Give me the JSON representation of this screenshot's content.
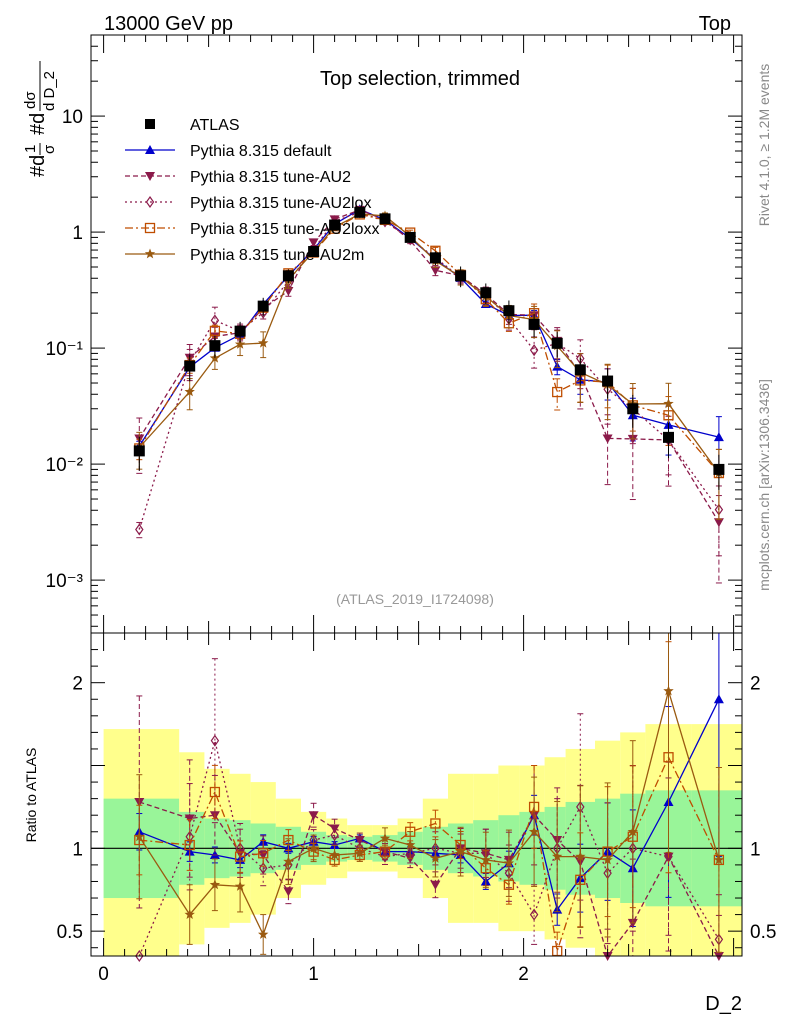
{
  "header": {
    "left": "13000 GeV pp",
    "right": "Top"
  },
  "side_labels": {
    "rivet": "Rivet 4.1.0, ≥ 1.2M events",
    "mcplots": "mcplots.cern.ch [arXiv:1306.3436]"
  },
  "chart_data": {
    "type": "line",
    "title": "Top selection, trimmed",
    "analysis_tag": "(ATLAS_2019_I1724098)",
    "xlabel": "D_2",
    "ylabel": "1/σ dσ/dD_2",
    "ratio_ylabel": "Ratio to ATLAS",
    "xlim": [
      -0.06,
      3.04
    ],
    "ylim": [
      0.00035,
      50
    ],
    "ylog": true,
    "ratio_ylim": [
      0.35,
      2.3
    ],
    "x_ticks": [
      "0",
      "1",
      "2"
    ],
    "y_ticks": [
      "10⁻³",
      "10⁻²",
      "10⁻¹",
      "1",
      "10"
    ],
    "ratio_ticks": [
      "0.5",
      "1",
      "2"
    ],
    "x": [
      0.17,
      0.41,
      0.53,
      0.65,
      0.76,
      0.88,
      1.0,
      1.1,
      1.22,
      1.34,
      1.46,
      1.58,
      1.7,
      1.82,
      1.93,
      2.05,
      2.16,
      2.27,
      2.4,
      2.52,
      2.69,
      2.93
    ],
    "x_edges": [
      0.0,
      0.36,
      0.48,
      0.6,
      0.7,
      0.82,
      0.94,
      1.06,
      1.16,
      1.28,
      1.4,
      1.52,
      1.64,
      1.76,
      1.88,
      1.98,
      2.1,
      2.2,
      2.34,
      2.46,
      2.58,
      2.8,
      3.04
    ],
    "band": {
      "inner": [
        0.3,
        0.22,
        0.18,
        0.17,
        0.15,
        0.13,
        0.1,
        0.08,
        0.07,
        0.08,
        0.1,
        0.13,
        0.15,
        0.17,
        0.2,
        0.22,
        0.25,
        0.28,
        0.3,
        0.33,
        0.35,
        0.35
      ],
      "outer": [
        0.72,
        0.58,
        0.48,
        0.45,
        0.4,
        0.3,
        0.22,
        0.18,
        0.14,
        0.14,
        0.18,
        0.3,
        0.45,
        0.45,
        0.5,
        0.5,
        0.55,
        0.6,
        0.65,
        0.7,
        0.75,
        0.75
      ]
    },
    "data": {
      "name": "ATLAS",
      "values": [
        0.013,
        0.07,
        0.105,
        0.14,
        0.23,
        0.42,
        0.68,
        1.15,
        1.48,
        1.3,
        0.9,
        0.6,
        0.42,
        0.3,
        0.21,
        0.16,
        0.11,
        0.065,
        0.052,
        0.03,
        0.017,
        0.009
      ]
    },
    "series": [
      {
        "name": "Pythia 8.315 default",
        "color": "#0000cc",
        "dash": "",
        "marker": "triangle-up",
        "ratio": [
          1.1,
          0.98,
          0.96,
          0.93,
          1.04,
          1.0,
          1.04,
          1.02,
          1.06,
          0.98,
          0.98,
          0.97,
          0.96,
          0.8,
          0.91,
          1.2,
          0.63,
          0.82,
          0.98,
          0.88,
          1.28,
          1.9
        ],
        "err": [
          0.1,
          0.06,
          0.05,
          0.05,
          0.04,
          0.03,
          0.03,
          0.02,
          0.02,
          0.02,
          0.03,
          0.04,
          0.05,
          0.06,
          0.08,
          0.1,
          0.15,
          0.25,
          0.3,
          0.4,
          0.45,
          0.5
        ]
      },
      {
        "name": "Pythia 8.315 tune-AU2",
        "color": "#8b1a4a",
        "dash": "5,3",
        "marker": "triangle-down",
        "ratio": [
          1.28,
          1.18,
          1.2,
          0.97,
          0.96,
          0.74,
          1.2,
          1.12,
          1.05,
          0.98,
          0.94,
          0.78,
          1.0,
          0.97,
          0.93,
          1.2,
          1.05,
          0.92,
          0.32,
          0.55,
          0.95,
          0.35
        ],
        "err": [
          0.5,
          0.3,
          0.2,
          0.15,
          0.12,
          0.1,
          0.06,
          0.05,
          0.04,
          0.05,
          0.06,
          0.1,
          0.12,
          0.15,
          0.18,
          0.25,
          0.3,
          0.5,
          0.6,
          0.7,
          0.6,
          0.7
        ]
      },
      {
        "name": "Pythia 8.315 tune-AU2lox",
        "color": "#8b1a4a",
        "dash": "2,3",
        "marker": "diamond",
        "ratio": [
          0.21,
          1.07,
          1.65,
          1.0,
          0.88,
          0.9,
          1.05,
          1.08,
          1.0,
          0.95,
          0.97,
          1.0,
          0.97,
          0.97,
          0.85,
          0.6,
          1.0,
          1.25,
          0.85,
          1.0,
          0.95,
          0.45
        ],
        "err": [
          0.15,
          0.3,
          0.3,
          0.15,
          0.12,
          0.1,
          0.06,
          0.05,
          0.04,
          0.05,
          0.06,
          0.1,
          0.12,
          0.15,
          0.2,
          0.3,
          0.3,
          0.45,
          0.5,
          0.5,
          0.5,
          0.6
        ]
      },
      {
        "name": "Pythia 8.315 tune-AU2loxx",
        "color": "#bf4d00",
        "dash": "8,3,2,3",
        "marker": "square-open",
        "ratio": [
          1.05,
          1.02,
          1.34,
          0.95,
          0.97,
          1.05,
          0.98,
          0.93,
          0.96,
          0.98,
          1.1,
          1.15,
          1.02,
          0.88,
          0.78,
          1.25,
          0.38,
          0.81,
          0.98,
          1.07,
          1.55,
          0.93
        ],
        "err": [
          0.2,
          0.15,
          0.12,
          0.1,
          0.08,
          0.06,
          0.05,
          0.04,
          0.04,
          0.04,
          0.05,
          0.07,
          0.08,
          0.12,
          0.15,
          0.2,
          0.3,
          0.35,
          0.4,
          0.4,
          0.45,
          0.6
        ]
      },
      {
        "name": "Pythia 8.315 tune-AU2m",
        "color": "#9a5a10",
        "dash": "",
        "marker": "star",
        "ratio": [
          1.07,
          0.6,
          0.78,
          0.77,
          0.48,
          0.92,
          1.0,
          0.96,
          0.97,
          1.06,
          1.02,
          0.94,
          0.98,
          0.93,
          0.91,
          1.1,
          0.95,
          0.95,
          0.93,
          1.1,
          1.95,
          0.93
        ],
        "err": [
          0.35,
          0.3,
          0.2,
          0.2,
          0.25,
          0.15,
          0.08,
          0.06,
          0.05,
          0.06,
          0.08,
          0.12,
          0.15,
          0.18,
          0.22,
          0.3,
          0.35,
          0.45,
          0.5,
          0.5,
          0.5,
          0.6
        ]
      }
    ]
  }
}
